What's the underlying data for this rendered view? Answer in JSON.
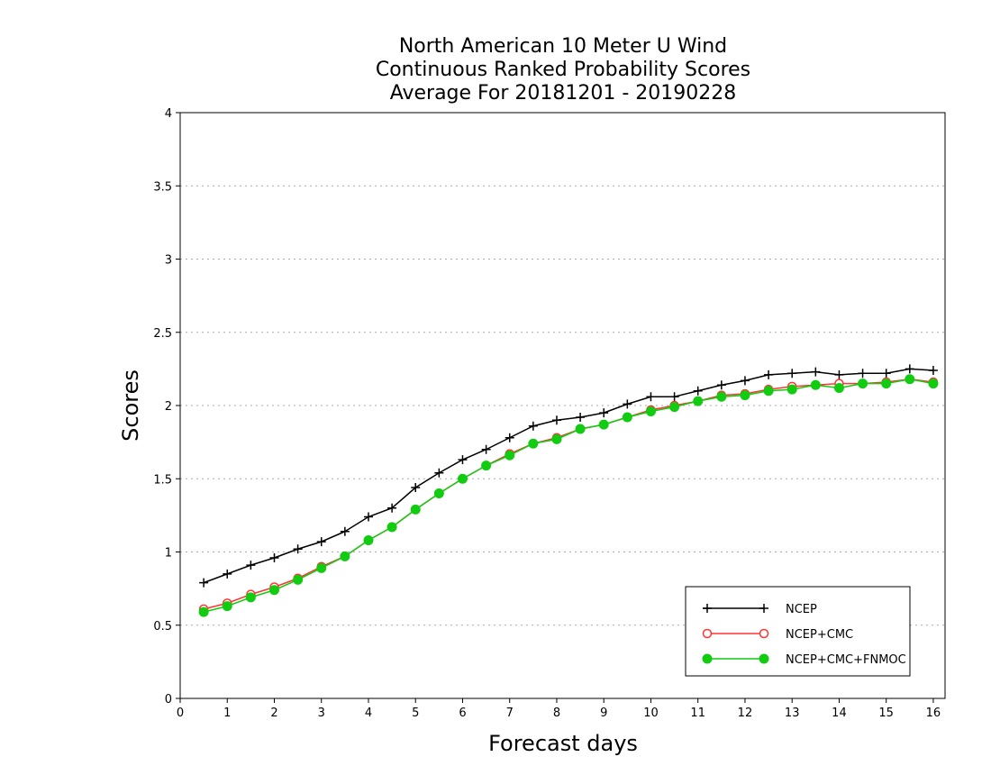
{
  "chart_data": {
    "type": "line",
    "title": [
      "North American 10 Meter U Wind",
      "Continuous Ranked Probability Scores",
      "Average For 20181201 - 20190228"
    ],
    "xlabel": "Forecast days",
    "ylabel": "Scores",
    "xlim": [
      0,
      16.25
    ],
    "ylim": [
      0,
      4
    ],
    "xticks": [
      0,
      1,
      2,
      3,
      4,
      5,
      6,
      7,
      8,
      9,
      10,
      11,
      12,
      13,
      14,
      15,
      16
    ],
    "yticks": [
      0,
      0.5,
      1,
      1.5,
      2,
      2.5,
      3,
      3.5,
      4
    ],
    "ytick_labels": [
      "0",
      "0.5",
      "1",
      "1.5",
      "2",
      "2.5",
      "3",
      "3.5",
      "4"
    ],
    "grid": "horizontal dotted",
    "legend_position": "bottom-right",
    "x": [
      0.5,
      1,
      1.5,
      2,
      2.5,
      3,
      3.5,
      4,
      4.5,
      5,
      5.5,
      6,
      6.5,
      7,
      7.5,
      8,
      8.5,
      9,
      9.5,
      10,
      10.5,
      11,
      11.5,
      12,
      12.5,
      13,
      13.5,
      14,
      14.5,
      15,
      15.5,
      16
    ],
    "series": [
      {
        "name": "NCEP",
        "color": "#000000",
        "marker": "plus",
        "values": [
          0.79,
          0.85,
          0.91,
          0.96,
          1.02,
          1.07,
          1.14,
          1.24,
          1.3,
          1.44,
          1.54,
          1.63,
          1.7,
          1.78,
          1.86,
          1.9,
          1.92,
          1.95,
          2.01,
          2.06,
          2.06,
          2.1,
          2.14,
          2.17,
          2.21,
          2.22,
          2.23,
          2.21,
          2.22,
          2.22,
          2.25,
          2.24
        ]
      },
      {
        "name": "NCEP+CMC",
        "color": "#ff3333",
        "marker": "open-circle",
        "values": [
          0.61,
          0.65,
          0.71,
          0.76,
          0.82,
          0.9,
          0.97,
          1.08,
          1.17,
          1.29,
          1.4,
          1.5,
          1.59,
          1.67,
          1.74,
          1.78,
          1.84,
          1.87,
          1.92,
          1.97,
          2.0,
          2.03,
          2.07,
          2.08,
          2.11,
          2.13,
          2.14,
          2.15,
          2.15,
          2.16,
          2.18,
          2.16
        ]
      },
      {
        "name": "NCEP+CMC+FNMOC",
        "color": "#11cc11",
        "marker": "filled-circle",
        "values": [
          0.59,
          0.63,
          0.69,
          0.74,
          0.81,
          0.89,
          0.97,
          1.08,
          1.17,
          1.29,
          1.4,
          1.5,
          1.59,
          1.66,
          1.74,
          1.77,
          1.84,
          1.87,
          1.92,
          1.96,
          1.99,
          2.03,
          2.06,
          2.07,
          2.1,
          2.11,
          2.14,
          2.12,
          2.15,
          2.15,
          2.18,
          2.15
        ]
      }
    ]
  }
}
